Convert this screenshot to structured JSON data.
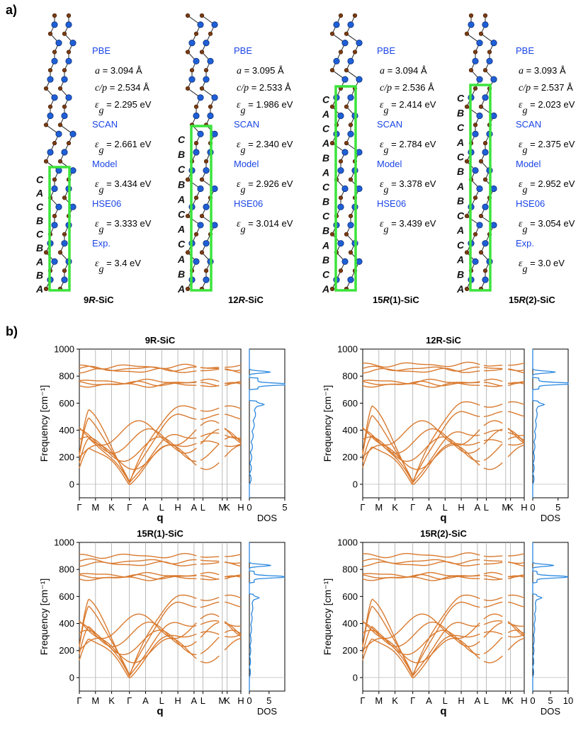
{
  "figure": {
    "panel_a_label": "a)",
    "panel_b_label": "b)"
  },
  "structures": [
    {
      "name": "9R-SiC",
      "name_prefix": "9",
      "name_italic": "R",
      "name_suffix": "-SiC",
      "stacking": [
        "A",
        "B",
        "A",
        "B",
        "C",
        "B",
        "C",
        "A",
        "C"
      ],
      "info": [
        {
          "kind": "method",
          "text": "PBE"
        },
        {
          "kind": "param",
          "sym": "a",
          "text": " = 3.094 Å"
        },
        {
          "kind": "param",
          "sym": "c/p",
          "text": " = 2.534 Å"
        },
        {
          "kind": "gap",
          "text": " = 2.295 eV"
        },
        {
          "kind": "method",
          "text": "SCAN"
        },
        {
          "kind": "gap",
          "text": " = 2.661 eV"
        },
        {
          "kind": "method",
          "text": "Model"
        },
        {
          "kind": "gap",
          "text": " = 3.434 eV"
        },
        {
          "kind": "method",
          "text": "HSE06"
        },
        {
          "kind": "gap",
          "text": " = 3.333 eV"
        },
        {
          "kind": "method",
          "text": "Exp."
        },
        {
          "kind": "gap",
          "text": " = 3.4 eV"
        }
      ]
    },
    {
      "name": "12R-SiC",
      "name_prefix": "12",
      "name_italic": "R",
      "name_suffix": "-SiC",
      "stacking": [
        "A",
        "B",
        "A",
        "C",
        "A",
        "C",
        "A",
        "B",
        "C",
        "B",
        "C"
      ],
      "info": [
        {
          "kind": "method",
          "text": "PBE"
        },
        {
          "kind": "param",
          "sym": "a",
          "text": " = 3.095 Å"
        },
        {
          "kind": "param",
          "sym": "c/p",
          "text": " = 2.533 Å"
        },
        {
          "kind": "gap",
          "text": " = 1.986 eV"
        },
        {
          "kind": "method",
          "text": "SCAN"
        },
        {
          "kind": "gap",
          "text": " = 2.340 eV"
        },
        {
          "kind": "method",
          "text": "Model"
        },
        {
          "kind": "gap",
          "text": " = 2.926 eV"
        },
        {
          "kind": "method",
          "text": "HSE06"
        },
        {
          "kind": "gap",
          "text": " = 3.014 eV"
        }
      ]
    },
    {
      "name": "15R(1)-SiC",
      "name_prefix": "15",
      "name_italic": "R",
      "name_suffix": "(1)-SiC",
      "stacking": [
        "A",
        "C",
        "B",
        "A",
        "B",
        "C",
        "B",
        "C",
        "A",
        "B",
        "A",
        "C",
        "A",
        "C"
      ],
      "info": [
        {
          "kind": "method",
          "text": "PBE"
        },
        {
          "kind": "param",
          "sym": "a",
          "text": " = 3.094 Å"
        },
        {
          "kind": "param",
          "sym": "c/p",
          "text": " = 2.536 Å"
        },
        {
          "kind": "gap",
          "text": " = 2.414 eV"
        },
        {
          "kind": "method",
          "text": "SCAN"
        },
        {
          "kind": "gap",
          "text": " = 2.784 eV"
        },
        {
          "kind": "method",
          "text": "Model"
        },
        {
          "kind": "gap",
          "text": " = 3.378 eV"
        },
        {
          "kind": "method",
          "text": "HSE06"
        },
        {
          "kind": "gap",
          "text": " = 3.439 eV"
        }
      ]
    },
    {
      "name": "15R(2)-SiC",
      "name_prefix": "15",
      "name_italic": "R",
      "name_suffix": "(2)-SiC",
      "stacking": [
        "A",
        "B",
        "A",
        "C",
        "A",
        "C",
        "B",
        "A",
        "B",
        "C",
        "A",
        "C",
        "B",
        "C"
      ],
      "info": [
        {
          "kind": "method",
          "text": "PBE"
        },
        {
          "kind": "param",
          "sym": "a",
          "text": " = 3.093 Å"
        },
        {
          "kind": "param",
          "sym": "c/p",
          "text": " = 2.537 Å"
        },
        {
          "kind": "gap",
          "text": " = 2.023 eV"
        },
        {
          "kind": "method",
          "text": "SCAN"
        },
        {
          "kind": "gap",
          "text": " = 2.375 eV"
        },
        {
          "kind": "method",
          "text": "Model"
        },
        {
          "kind": "gap",
          "text": " = 2.952 eV"
        },
        {
          "kind": "method",
          "text": "HSE06"
        },
        {
          "kind": "gap",
          "text": " = 3.054 eV"
        },
        {
          "kind": "method",
          "text": "Exp."
        },
        {
          "kind": "gap",
          "text": " = 3.0 eV"
        }
      ]
    }
  ],
  "chart_data": [
    {
      "type": "line",
      "title": "9R-SiC",
      "ylabel": "Frequency [cm⁻¹]",
      "xlabel": "q",
      "ylim": [
        -100,
        1000
      ],
      "yticks": [
        0,
        200,
        400,
        600,
        800,
        1000
      ],
      "xticks": [
        "Γ",
        "M",
        "K",
        "Γ",
        "A",
        "L",
        "H",
        "A",
        "L",
        "M",
        "K",
        "H"
      ],
      "optical_bands": [
        760,
        745,
        735,
        840,
        855,
        870
      ],
      "acoustic_max": [
        560,
        500,
        360,
        300
      ],
      "dos_label": "DOS",
      "dos_xlim": [
        0,
        5
      ],
      "dos_xticks": [
        0,
        5
      ],
      "dos_peaks": [
        {
          "freq": 740,
          "value": 5.2
        },
        {
          "freq": 830,
          "value": 3.0
        },
        {
          "freq": 590,
          "value": 1.0
        }
      ],
      "colors": {
        "band": "#d97a2f",
        "dos": "#2a88e0"
      }
    },
    {
      "type": "line",
      "title": "12R-SiC",
      "ylabel": "Frequency [cm⁻¹]",
      "xlabel": "q",
      "ylim": [
        -100,
        1000
      ],
      "yticks": [
        0,
        200,
        400,
        600,
        800,
        1000
      ],
      "xticks": [
        "Γ",
        "M",
        "K",
        "Γ",
        "A",
        "L",
        "H",
        "A",
        "L",
        "M",
        "K",
        "H"
      ],
      "optical_bands": [
        760,
        745,
        735,
        840,
        855,
        885
      ],
      "acoustic_max": [
        590,
        520,
        380,
        310
      ],
      "dos_label": "DOS",
      "dos_xlim": [
        0,
        7
      ],
      "dos_xticks": [
        0,
        5
      ],
      "dos_peaks": [
        {
          "freq": 745,
          "value": 7.8
        },
        {
          "freq": 830,
          "value": 4.5
        },
        {
          "freq": 590,
          "value": 1.2
        }
      ],
      "colors": {
        "band": "#d97a2f",
        "dos": "#2a88e0"
      }
    },
    {
      "type": "line",
      "title": "15R(1)-SiC",
      "ylabel": "Frequency [cm⁻¹]",
      "xlabel": "q",
      "ylim": [
        -100,
        1000
      ],
      "yticks": [
        0,
        200,
        400,
        600,
        800,
        1000
      ],
      "xticks": [
        "Γ",
        "M",
        "K",
        "Γ",
        "A",
        "L",
        "H",
        "A",
        "L",
        "M",
        "K",
        "H"
      ],
      "optical_bands": [
        760,
        745,
        735,
        840,
        860,
        900
      ],
      "acoustic_max": [
        590,
        540,
        400,
        320
      ],
      "dos_label": "DOS",
      "dos_xlim": [
        0,
        9
      ],
      "dos_xticks": [
        0,
        5
      ],
      "dos_peaks": [
        {
          "freq": 745,
          "value": 9.0
        },
        {
          "freq": 830,
          "value": 5.5
        },
        {
          "freq": 590,
          "value": 1.4
        }
      ],
      "colors": {
        "band": "#d97a2f",
        "dos": "#2a88e0"
      }
    },
    {
      "type": "line",
      "title": "15R(2)-SiC",
      "ylabel": "Frequency [cm⁻¹]",
      "xlabel": "q",
      "ylim": [
        -100,
        1000
      ],
      "yticks": [
        0,
        200,
        400,
        600,
        800,
        1000
      ],
      "xticks": [
        "Γ",
        "M",
        "K",
        "Γ",
        "A",
        "L",
        "H",
        "A",
        "L",
        "M",
        "K",
        "H"
      ],
      "optical_bands": [
        760,
        745,
        735,
        840,
        860,
        905
      ],
      "acoustic_max": [
        590,
        540,
        400,
        320
      ],
      "dos_label": "DOS",
      "dos_xlim": [
        0,
        10
      ],
      "dos_xticks": [
        0,
        5,
        10
      ],
      "dos_peaks": [
        {
          "freq": 745,
          "value": 9.8
        },
        {
          "freq": 830,
          "value": 6.0
        },
        {
          "freq": 590,
          "value": 1.5
        }
      ],
      "colors": {
        "band": "#d97a2f",
        "dos": "#2a88e0"
      }
    }
  ]
}
